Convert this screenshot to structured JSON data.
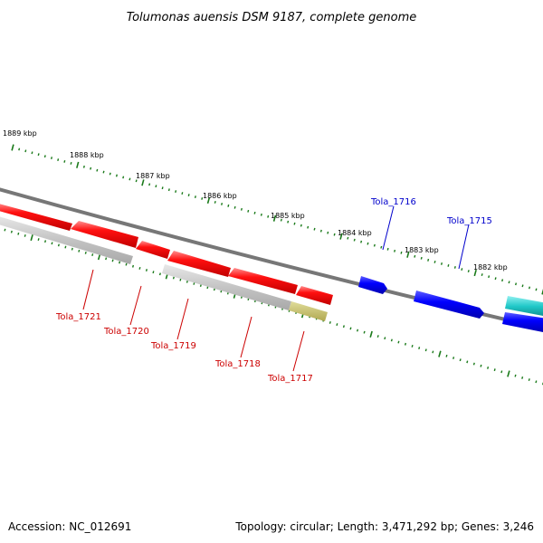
{
  "title": "Tolumonas auensis DSM 9187, complete genome",
  "footer": {
    "accession": "Accession: NC_012691",
    "summary": "Topology: circular; Length: 3,471,292 bp; Genes: 3,246"
  },
  "colors": {
    "backbone": "#777777",
    "tick": "#1a7a1a",
    "reverse_gene": "#ff0000",
    "forward_gene": "#0000ff",
    "cds_gray": "#c0c0c0",
    "other_feature": "#c8c070",
    "cyan_feature": "#33cccc",
    "reverse_label": "#cc0000",
    "forward_label": "#0000cc"
  },
  "kbp_labels": [
    "1889 kbp",
    "1888 kbp",
    "1887 kbp",
    "1886 kbp",
    "1885 kbp",
    "1884 kbp",
    "1883 kbp",
    "1882 kbp"
  ],
  "gene_labels": {
    "reverse": [
      "Tola_1721",
      "Tola_1720",
      "Tola_1719",
      "Tola_1718",
      "Tola_1717"
    ],
    "forward": [
      "Tola_1716",
      "Tola_1715"
    ]
  }
}
